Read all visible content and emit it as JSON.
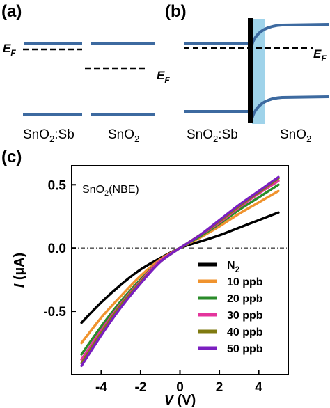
{
  "panels": {
    "a": {
      "label": "(a)",
      "ef_left": "E",
      "ef_left_sub": "F",
      "ef_right": "E",
      "ef_right_sub": "F",
      "material_left": "SnO",
      "material_left_sub": "2",
      "material_left_suffix": ":Sb",
      "material_right": "SnO",
      "material_right_sub": "2"
    },
    "b": {
      "label": "(b)",
      "ef": "E",
      "ef_sub": "F",
      "material_left": "SnO",
      "material_left_sub": "2",
      "material_left_suffix": ":Sb",
      "material_right": "SnO",
      "material_right_sub": "2"
    },
    "c": {
      "label": "(c)",
      "inset": "SnO",
      "inset_sub": "2",
      "inset_suffix": "(NBE)"
    }
  },
  "colors": {
    "band": "#3d6aa0",
    "depletion": "#9fd3ea"
  },
  "chart_data": {
    "type": "line",
    "xlabel": "V (V)",
    "ylabel": "I (µA)",
    "xlim": [
      -5.5,
      5.5
    ],
    "ylim": [
      -1.0,
      0.65
    ],
    "xticks": [
      -4,
      -2,
      0,
      2,
      4
    ],
    "xtick_labels": [
      "-4",
      "-2",
      "0",
      "2",
      "4"
    ],
    "yticks": [
      -0.5,
      0.0,
      0.5
    ],
    "ytick_labels": [
      "-0.5",
      "0.0",
      "0.5"
    ],
    "grid": false,
    "legend_position": "bottom-right",
    "series": [
      {
        "name": "N2",
        "legend_main": "N",
        "legend_sub": "2",
        "color": "#000000",
        "x": [
          -5,
          -4,
          -3,
          -2,
          -1,
          0,
          1,
          2,
          3,
          4,
          5
        ],
        "y": [
          -0.59,
          -0.43,
          -0.29,
          -0.17,
          -0.08,
          0.0,
          0.05,
          0.1,
          0.16,
          0.22,
          0.28
        ]
      },
      {
        "name": "10 ppb",
        "legend_main": "10 ppb",
        "legend_sub": "",
        "color": "#f0932e",
        "x": [
          -5,
          -4,
          -3,
          -2,
          -1,
          0,
          1,
          2,
          3,
          4,
          5
        ],
        "y": [
          -0.75,
          -0.55,
          -0.38,
          -0.22,
          -0.09,
          0.0,
          0.08,
          0.17,
          0.27,
          0.36,
          0.45
        ]
      },
      {
        "name": "20 ppb",
        "legend_main": "20 ppb",
        "legend_sub": "",
        "color": "#2a8b2a",
        "x": [
          -5,
          -4,
          -3,
          -2,
          -1,
          0,
          1,
          2,
          3,
          4,
          5
        ],
        "y": [
          -0.84,
          -0.62,
          -0.42,
          -0.25,
          -0.1,
          0.0,
          0.09,
          0.19,
          0.3,
          0.4,
          0.5
        ]
      },
      {
        "name": "30 ppb",
        "legend_main": "30 ppb",
        "legend_sub": "",
        "color": "#e4349c",
        "x": [
          -5,
          -4,
          -3,
          -2,
          -1,
          0,
          1,
          2,
          3,
          4,
          5
        ],
        "y": [
          -0.88,
          -0.65,
          -0.44,
          -0.26,
          -0.1,
          0.0,
          0.1,
          0.2,
          0.32,
          0.43,
          0.53
        ]
      },
      {
        "name": "40 ppb",
        "legend_main": "40 ppb",
        "legend_sub": "",
        "color": "#7f7a10",
        "x": [
          -5,
          -4,
          -3,
          -2,
          -1,
          0,
          1,
          2,
          3,
          4,
          5
        ],
        "y": [
          -0.91,
          -0.67,
          -0.45,
          -0.27,
          -0.11,
          0.0,
          0.1,
          0.21,
          0.33,
          0.44,
          0.55
        ]
      },
      {
        "name": "50 ppb",
        "legend_main": "50 ppb",
        "legend_sub": "",
        "color": "#7b1fc0",
        "x": [
          -5,
          -4,
          -3,
          -2,
          -1,
          0,
          1,
          2,
          3,
          4,
          5
        ],
        "y": [
          -0.93,
          -0.69,
          -0.47,
          -0.28,
          -0.11,
          0.0,
          0.1,
          0.22,
          0.34,
          0.45,
          0.56
        ]
      }
    ]
  }
}
